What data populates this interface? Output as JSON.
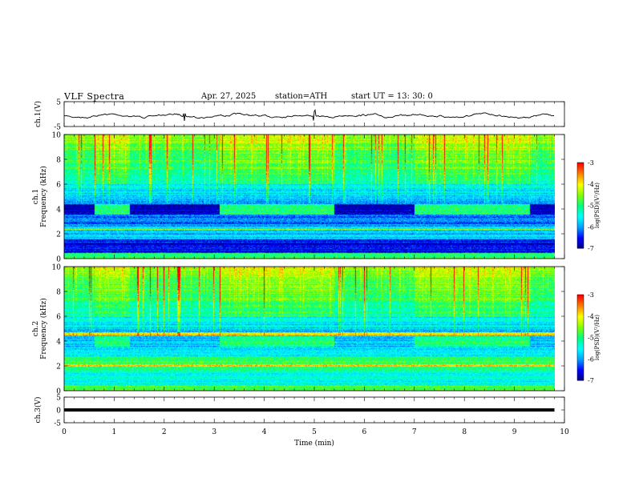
{
  "header": {
    "title": "VLF  Spectra",
    "date": "Apr. 27, 2025",
    "station": "station=ATH",
    "start": "start  UT  =    13: 30: 0"
  },
  "chart_data": [
    {
      "type": "line",
      "panel": "ch1-waveform",
      "ylabel": "ch.1(V)",
      "ylim": [
        -5,
        5
      ],
      "y_ticks": [
        "5",
        "-5"
      ],
      "x_range_min": [
        0,
        9.8
      ],
      "baseline": 0,
      "note_trace": "noisy trace around 0 V with spikes near 2.4, 3.1, 5.0, 6.8 min"
    },
    {
      "type": "heatmap",
      "panel": "ch1-spectrogram",
      "ylabel": "ch.1\nFrequency  (kHz)",
      "ylim": [
        0,
        10
      ],
      "y_ticks": [
        "0",
        "2",
        "4",
        "6",
        "8",
        "10"
      ],
      "colorbar": {
        "label": "log(PSD)(V²/Hz)",
        "range": [
          -7,
          -3
        ],
        "ticks": [
          "-3",
          "-4",
          "-5",
          "-6",
          "-7"
        ]
      },
      "transmitter_on_intervals_min": [
        [
          0.6,
          1.3
        ],
        [
          3.1,
          5.4
        ],
        [
          7.0,
          9.3
        ]
      ],
      "transmitter_band_khz": [
        3.6,
        4.4
      ]
    },
    {
      "type": "heatmap",
      "panel": "ch2-spectrogram",
      "ylabel": "ch.2\nFrequency  (kHz)",
      "ylim": [
        0,
        10
      ],
      "y_ticks": [
        "0",
        "2",
        "4",
        "6",
        "8",
        "10"
      ],
      "colorbar": {
        "label": "log(PSD)(V²/Hz)",
        "range": [
          -7,
          -3
        ],
        "ticks": [
          "-3",
          "-4",
          "-5",
          "-6",
          "-7"
        ]
      },
      "transmitter_on_intervals_min": [
        [
          0.6,
          1.3
        ],
        [
          3.1,
          5.4
        ],
        [
          7.0,
          9.3
        ]
      ],
      "transmitter_band_khz": [
        3.6,
        4.4
      ]
    },
    {
      "type": "line",
      "panel": "ch3-waveform",
      "ylabel": "ch.3(V)",
      "ylim": [
        -5,
        5
      ],
      "y_ticks": [
        "5",
        "0",
        "-5"
      ],
      "x_range_min": [
        0,
        9.8
      ],
      "baseline": 0
    }
  ],
  "x_axis": {
    "label": "Time  (min)",
    "range": [
      0,
      10
    ],
    "ticks": [
      "0",
      "1",
      "2",
      "3",
      "4",
      "5",
      "6",
      "7",
      "8",
      "9",
      "10"
    ]
  },
  "colors": {
    "scale": [
      "#000080",
      "#0000ff",
      "#00a0ff",
      "#00ffff",
      "#00ff80",
      "#80ff00",
      "#ffff00",
      "#ff8000",
      "#ff0000",
      "#ffffff"
    ],
    "trace": "#000000"
  }
}
